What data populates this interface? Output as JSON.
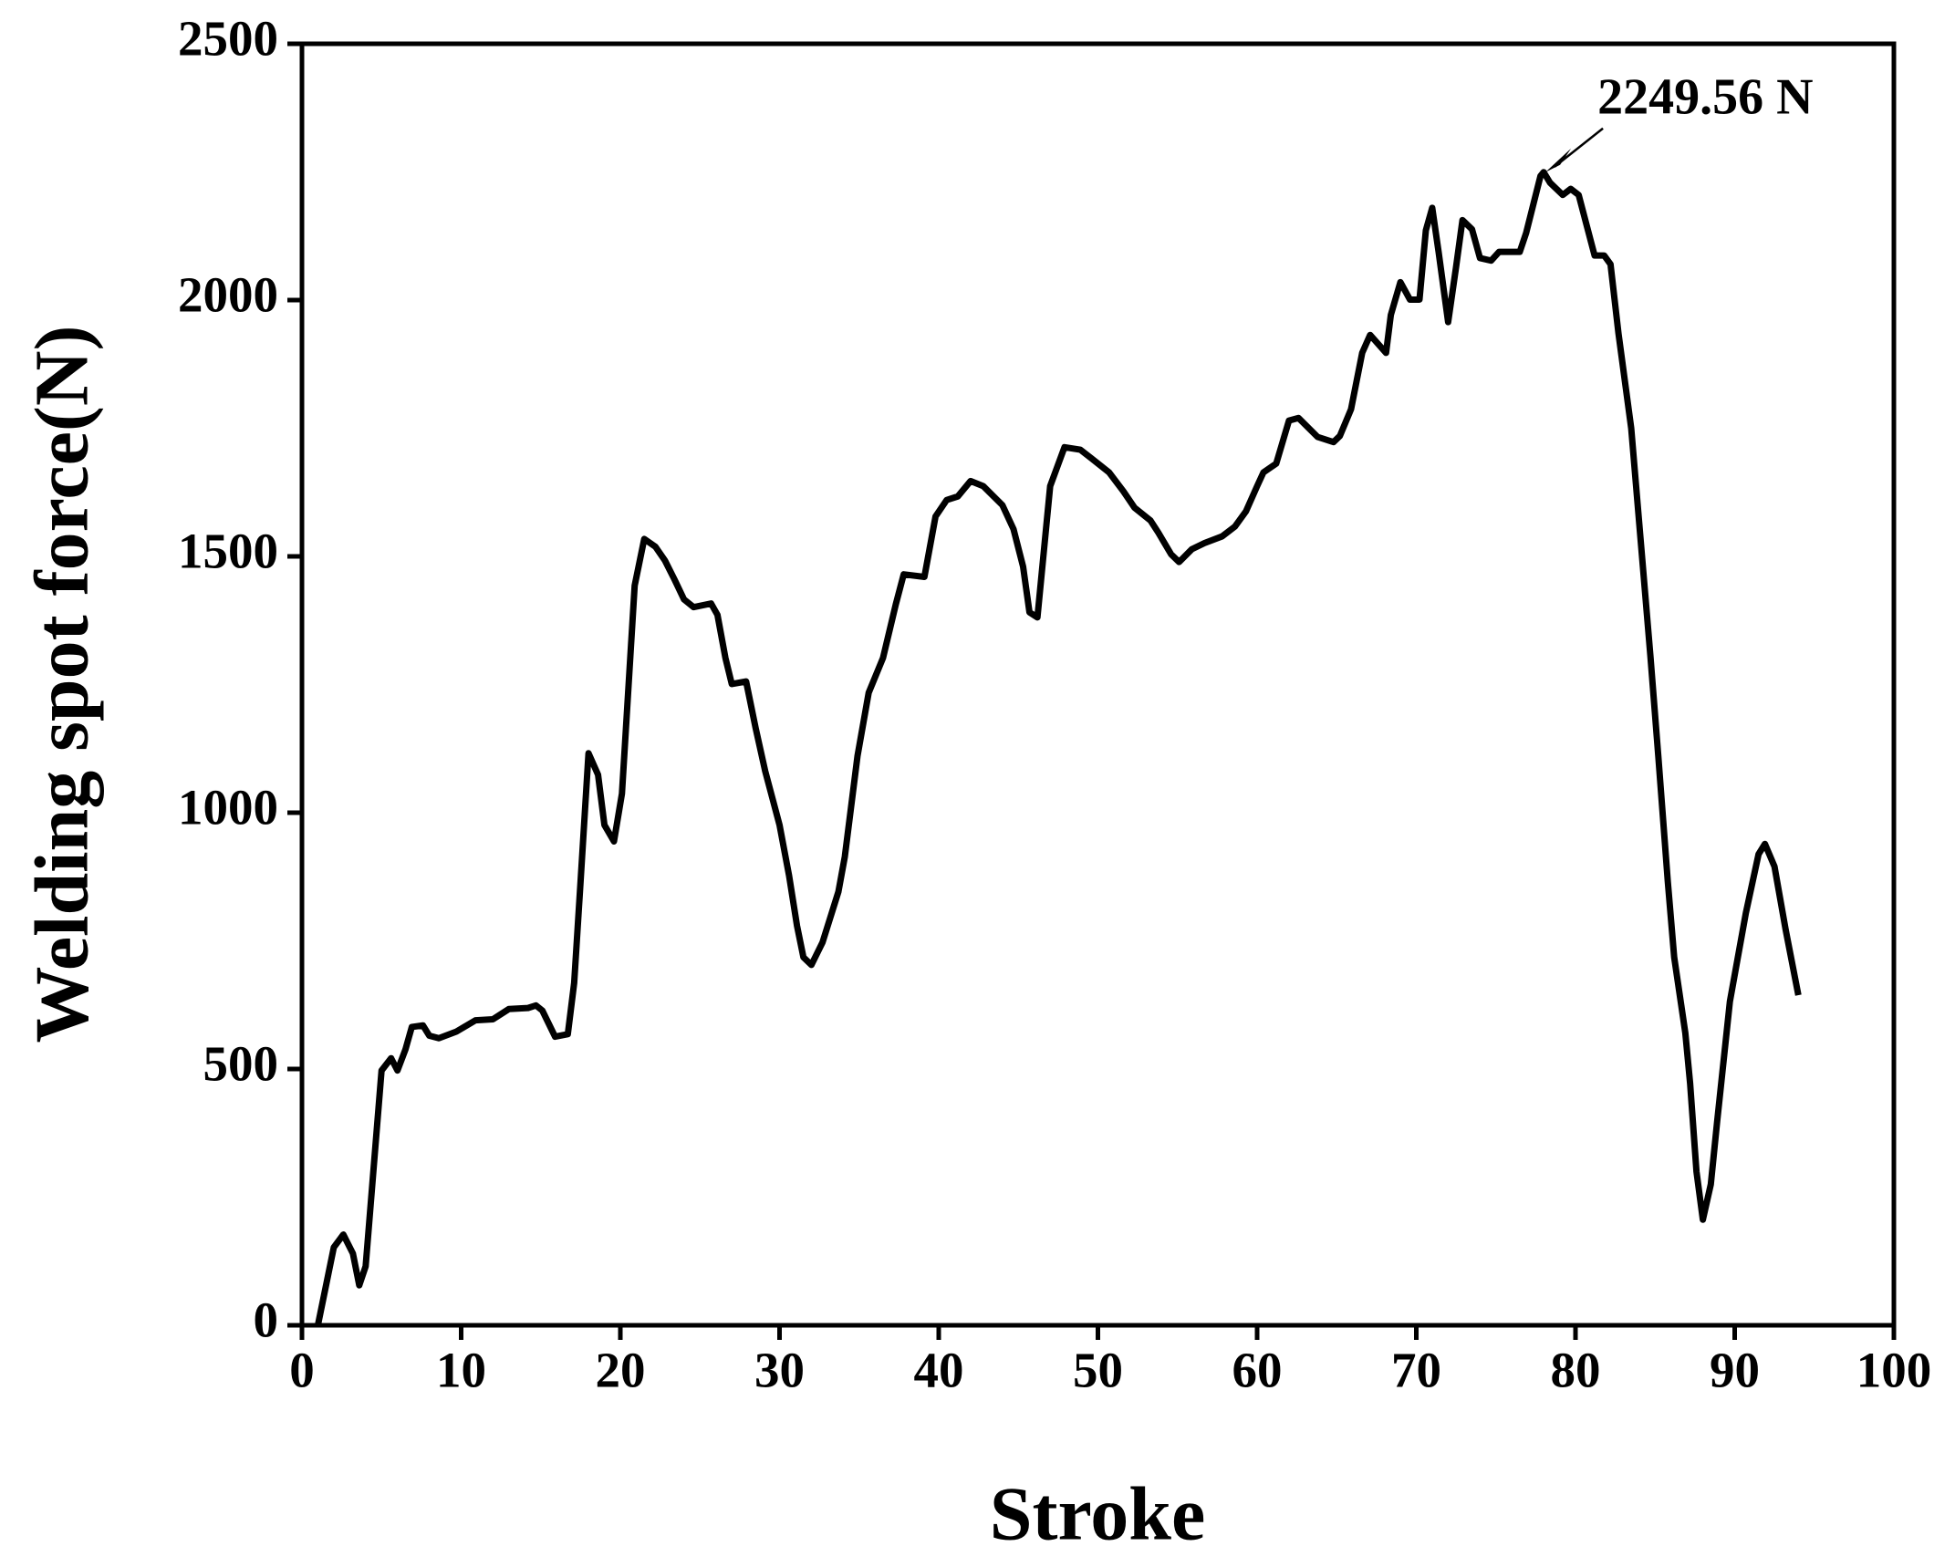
{
  "chart_data": {
    "type": "line",
    "xlabel": "Stroke",
    "ylabel": "Welding spot force(N)",
    "annotation": {
      "text": "2249.56 N",
      "x": 78.0,
      "y": 2249.56
    },
    "xlim": [
      0,
      100
    ],
    "xticks": [
      0,
      10,
      20,
      30,
      40,
      50,
      60,
      70,
      80,
      90,
      100
    ],
    "ylim": [
      0,
      2500
    ],
    "yticks": [
      0,
      500,
      1000,
      1500,
      2000,
      2500
    ],
    "grid": false,
    "series": [
      {
        "color": "#000000",
        "x": [
          1.0,
          2.0,
          2.6,
          3.2,
          3.6,
          4.0,
          5.0,
          5.6,
          6.0,
          6.5,
          6.9,
          7.6,
          8.0,
          8.6,
          9.7,
          10.9,
          12.0,
          13.0,
          14.2,
          14.7,
          15.1,
          15.9,
          16.7,
          17.1,
          17.5,
          18.0,
          18.6,
          19.0,
          19.6,
          20.1,
          20.9,
          21.5,
          22.2,
          22.8,
          23.4,
          24.0,
          24.6,
          25.7,
          26.1,
          26.6,
          27.0,
          27.9,
          28.5,
          29.1,
          30.0,
          30.6,
          31.1,
          31.5,
          32.0,
          32.7,
          33.7,
          34.1,
          34.9,
          35.6,
          36.5,
          37.3,
          37.8,
          39.1,
          39.8,
          40.5,
          41.2,
          42.0,
          42.8,
          44.0,
          44.7,
          45.3,
          45.7,
          46.2,
          46.6,
          47.0,
          47.9,
          48.9,
          49.6,
          50.7,
          51.6,
          52.3,
          53.3,
          53.8,
          54.6,
          55.1,
          55.9,
          56.7,
          57.8,
          58.6,
          59.3,
          60.0,
          60.4,
          61.2,
          62.0,
          62.6,
          63.8,
          64.8,
          65.2,
          65.9,
          66.6,
          67.1,
          68.1,
          68.4,
          69.0,
          69.6,
          70.2,
          70.6,
          71.0,
          71.4,
          72.0,
          72.5,
          72.9,
          73.5,
          74.0,
          74.7,
          75.2,
          76.5,
          76.9,
          77.8,
          78.0,
          78.4,
          79.2,
          79.7,
          80.2,
          81.2,
          81.8,
          82.2,
          82.7,
          83.5,
          84.1,
          84.7,
          85.2,
          85.8,
          86.2,
          86.9,
          87.2,
          87.6,
          88.0,
          88.5,
          88.9,
          89.7,
          90.7,
          91.5,
          91.9,
          92.5,
          93.2,
          94.0
        ],
        "values": [
          0,
          152,
          177,
          140,
          78,
          115,
          497,
          521,
          497,
          538,
          582,
          585,
          565,
          560,
          573,
          595,
          597,
          617,
          619,
          624,
          614,
          563,
          568,
          668,
          865,
          1116,
          1074,
          976,
          944,
          1037,
          1443,
          1534,
          1519,
          1492,
          1455,
          1416,
          1401,
          1408,
          1386,
          1302,
          1251,
          1256,
          1165,
          1081,
          976,
          877,
          779,
          718,
          703,
          747,
          846,
          914,
          1111,
          1234,
          1302,
          1406,
          1465,
          1460,
          1578,
          1610,
          1617,
          1647,
          1637,
          1600,
          1553,
          1480,
          1391,
          1381,
          1509,
          1637,
          1713,
          1708,
          1691,
          1664,
          1627,
          1595,
          1570,
          1546,
          1504,
          1489,
          1514,
          1526,
          1539,
          1558,
          1588,
          1637,
          1664,
          1681,
          1765,
          1770,
          1733,
          1723,
          1735,
          1787,
          1897,
          1932,
          1897,
          1971,
          2035,
          2001,
          2001,
          2136,
          2180,
          2094,
          1957,
          2065,
          2156,
          2138,
          2082,
          2077,
          2094,
          2094,
          2131,
          2242,
          2249.56,
          2229,
          2205,
          2217,
          2205,
          2087,
          2087,
          2070,
          1935,
          1750,
          1529,
          1308,
          1111,
          865,
          718,
          570,
          472,
          300,
          206,
          275,
          398,
          632,
          804,
          919,
          939,
          895,
          772,
          644
        ]
      }
    ]
  }
}
